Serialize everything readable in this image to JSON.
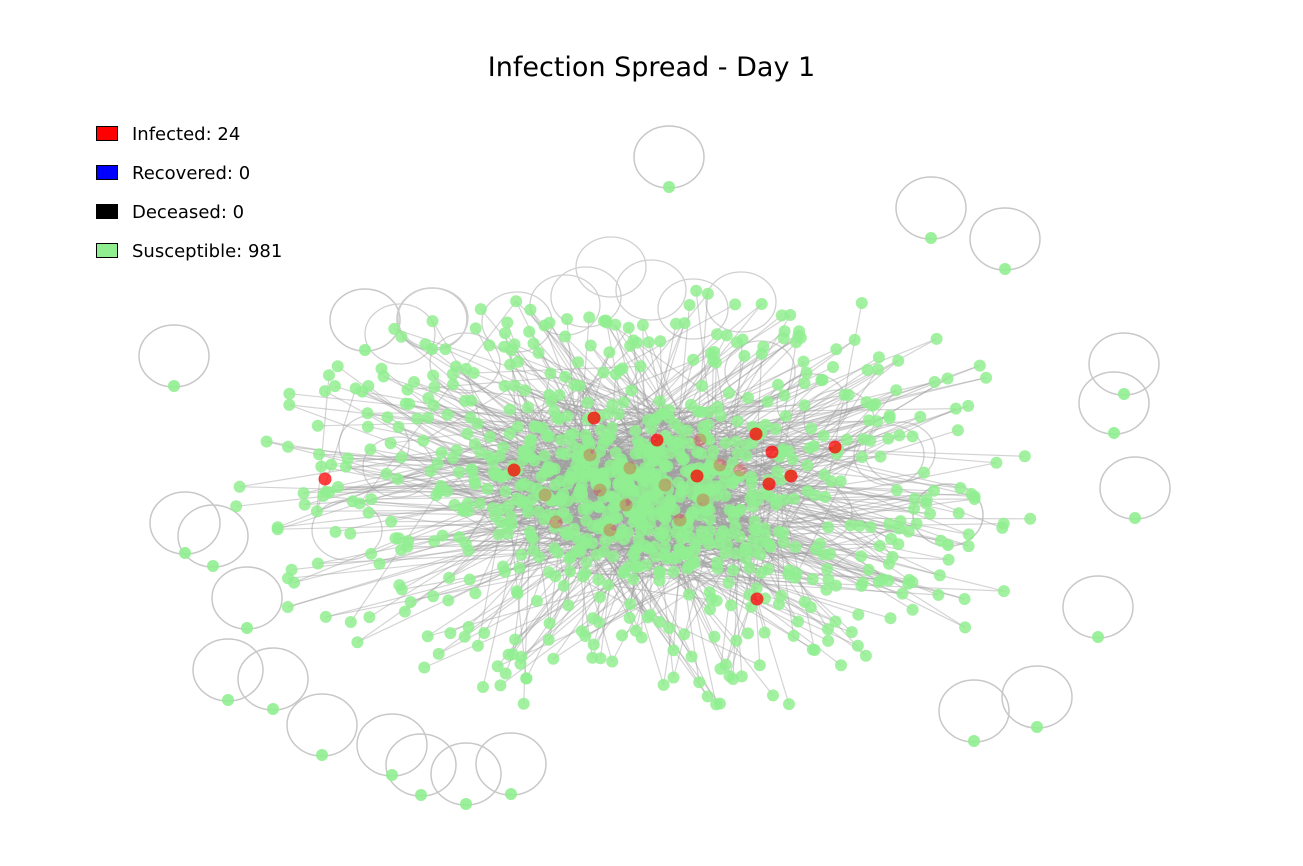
{
  "title": "Infection Spread - Day 1",
  "legend": {
    "infected": {
      "label": "Infected: 24",
      "color": "#ff0000"
    },
    "recovered": {
      "label": "Recovered: 0",
      "color": "#0000ff"
    },
    "deceased": {
      "label": "Deceased: 0",
      "color": "#000000"
    },
    "susceptible": {
      "label": "Susceptible: 981",
      "color": "#90ee90"
    }
  },
  "chart_data": {
    "type": "network",
    "counts": {
      "infected": 24,
      "recovered": 0,
      "deceased": 0,
      "susceptible": 981
    },
    "node_colors": {
      "infected": "#ff0000",
      "recovered": "#0000ff",
      "deceased": "#000000",
      "susceptible": "#90ee90"
    },
    "edge_color": "#a0a0a0",
    "legend_position": "upper-left"
  }
}
